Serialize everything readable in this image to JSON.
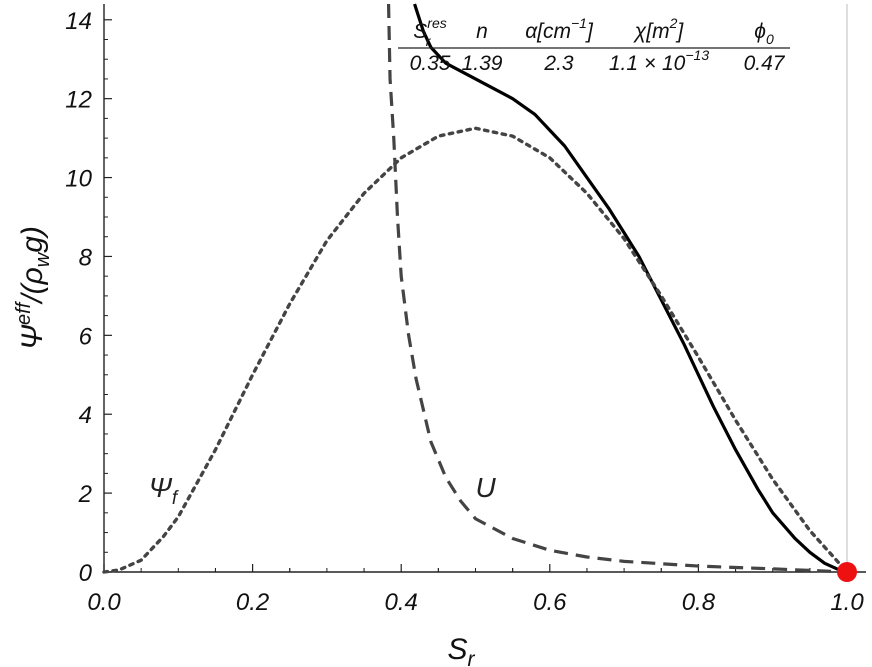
{
  "chart_data": {
    "type": "line",
    "xlabel": "S",
    "xlabel_sub": "r",
    "ylabel": "Ψ",
    "ylabel_sup": "eff",
    "ylabel_rest": "/(ρ",
    "ylabel_sub": "w",
    "ylabel_end": "g)",
    "xlim": [
      0,
      1
    ],
    "ylim": [
      0,
      14.4
    ],
    "x_ticks": [
      "0.0",
      "0.2",
      "0.4",
      "0.6",
      "0.8",
      "1.0"
    ],
    "y_ticks": [
      "0",
      "2",
      "4",
      "6",
      "8",
      "10",
      "12",
      "14"
    ],
    "grid": false,
    "vertical_reference_line_x": 1.0,
    "series": [
      {
        "style": "solid",
        "color": "#000000",
        "points": [
          [
            0.418,
            14.4
          ],
          [
            0.43,
            13.7
          ],
          [
            0.44,
            13.3
          ],
          [
            0.46,
            12.9
          ],
          [
            0.48,
            12.7
          ],
          [
            0.5,
            12.5
          ],
          [
            0.52,
            12.3
          ],
          [
            0.55,
            12.0
          ],
          [
            0.58,
            11.6
          ],
          [
            0.6,
            11.2
          ],
          [
            0.62,
            10.8
          ],
          [
            0.65,
            10.0
          ],
          [
            0.68,
            9.2
          ],
          [
            0.7,
            8.6
          ],
          [
            0.72,
            8.0
          ],
          [
            0.75,
            6.9
          ],
          [
            0.78,
            5.8
          ],
          [
            0.8,
            5.0
          ],
          [
            0.82,
            4.2
          ],
          [
            0.85,
            3.1
          ],
          [
            0.88,
            2.1
          ],
          [
            0.9,
            1.5
          ],
          [
            0.93,
            0.85
          ],
          [
            0.95,
            0.5
          ],
          [
            0.97,
            0.22
          ],
          [
            0.99,
            0.05
          ],
          [
            1.0,
            0.0
          ]
        ]
      },
      {
        "name": "U",
        "style": "dashed",
        "color": "#444444",
        "points": [
          [
            0.383,
            14.4
          ],
          [
            0.385,
            12.5
          ],
          [
            0.39,
            11.0
          ],
          [
            0.395,
            9.0
          ],
          [
            0.4,
            7.5
          ],
          [
            0.41,
            6.0
          ],
          [
            0.42,
            4.9
          ],
          [
            0.44,
            3.3
          ],
          [
            0.46,
            2.4
          ],
          [
            0.48,
            1.8
          ],
          [
            0.5,
            1.35
          ],
          [
            0.55,
            0.85
          ],
          [
            0.6,
            0.55
          ],
          [
            0.65,
            0.38
          ],
          [
            0.7,
            0.27
          ],
          [
            0.8,
            0.15
          ],
          [
            0.9,
            0.08
          ],
          [
            1.0,
            0.0
          ]
        ]
      },
      {
        "name": "Ψ_f",
        "style": "dotted",
        "color": "#444444",
        "points": [
          [
            0.0,
            0.0
          ],
          [
            0.02,
            0.05
          ],
          [
            0.05,
            0.3
          ],
          [
            0.08,
            0.9
          ],
          [
            0.1,
            1.4
          ],
          [
            0.15,
            3.1
          ],
          [
            0.2,
            5.0
          ],
          [
            0.25,
            6.8
          ],
          [
            0.3,
            8.4
          ],
          [
            0.35,
            9.6
          ],
          [
            0.4,
            10.5
          ],
          [
            0.45,
            11.05
          ],
          [
            0.5,
            11.25
          ],
          [
            0.55,
            11.05
          ],
          [
            0.6,
            10.5
          ],
          [
            0.65,
            9.6
          ],
          [
            0.7,
            8.45
          ],
          [
            0.75,
            7.0
          ],
          [
            0.8,
            5.45
          ],
          [
            0.85,
            3.85
          ],
          [
            0.9,
            2.35
          ],
          [
            0.95,
            1.05
          ],
          [
            1.0,
            0.0
          ]
        ]
      }
    ],
    "marker": {
      "x": 1.0,
      "y": 0.0,
      "color": "#ee1111"
    },
    "annotations": [
      {
        "text": "Ψ",
        "sub": "f",
        "x": 0.06,
        "y": 1.9
      },
      {
        "text": "U",
        "x": 0.5,
        "y": 1.9
      }
    ],
    "parameter_table": {
      "headers": [
        {
          "main": "S",
          "sub": "r",
          "sup": "res"
        },
        {
          "main": "n"
        },
        {
          "main": "α[cm",
          "sup": "−1",
          "tail": "]"
        },
        {
          "main": "χ[m",
          "sup": "2",
          "tail": "]"
        },
        {
          "main": "ϕ",
          "sub": "0"
        }
      ],
      "values": [
        {
          "main": "0.35"
        },
        {
          "main": "1.39"
        },
        {
          "main": "2.3"
        },
        {
          "main": "1.1 × 10",
          "sup": "−13"
        },
        {
          "main": "0.47"
        }
      ]
    }
  }
}
